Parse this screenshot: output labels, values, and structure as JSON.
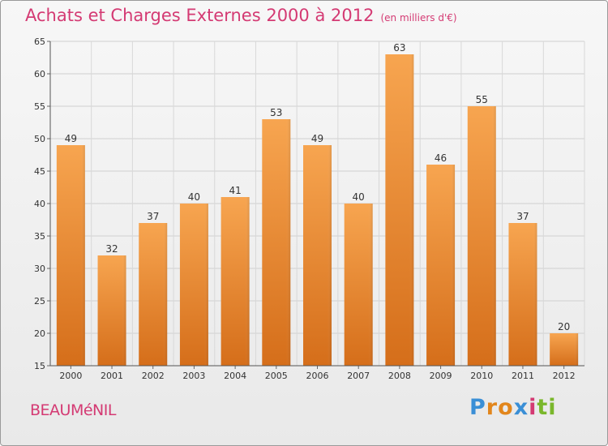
{
  "chart_data": {
    "type": "bar",
    "title": "Achats et Charges Externes 2000 à 2012",
    "subtitle": "(en milliers d'€)",
    "categories": [
      "2000",
      "2001",
      "2002",
      "2003",
      "2004",
      "2005",
      "2006",
      "2007",
      "2008",
      "2009",
      "2010",
      "2011",
      "2012"
    ],
    "values": [
      49,
      32,
      37,
      40,
      41,
      53,
      49,
      40,
      63,
      46,
      55,
      37,
      20
    ],
    "ylim": [
      15,
      65
    ],
    "yticks": [
      15,
      20,
      25,
      30,
      35,
      40,
      45,
      50,
      55,
      60,
      65
    ],
    "grid": true,
    "bar_color_top": "#f7a550",
    "bar_color_bottom": "#d56e1a"
  },
  "footer": {
    "commune": "BEAUMéNIL",
    "logo_letters": [
      "P",
      "r",
      "o",
      "x",
      "i",
      "t",
      "i"
    ],
    "logo_colors": [
      "#3a8fd6",
      "#e2861c",
      "#e2861c",
      "#3a8fd6",
      "#d43a73",
      "#7ab72b",
      "#7ab72b"
    ]
  }
}
